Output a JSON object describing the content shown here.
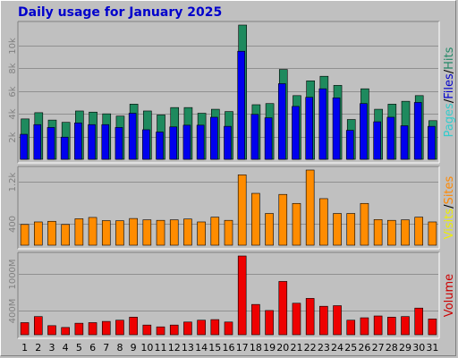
{
  "title": "Daily usage for January 2025",
  "legends": {
    "top": [
      {
        "text": "Pages",
        "color": "#33cccc"
      },
      {
        "text": "/",
        "color": "#000000"
      },
      {
        "text": "Files",
        "color": "#0000cc"
      },
      {
        "text": "/",
        "color": "#000000"
      },
      {
        "text": "Hits",
        "color": "#228866"
      }
    ],
    "middle": [
      {
        "text": "Visits",
        "color": "#eeee00"
      },
      {
        "text": "/",
        "color": "#000000"
      },
      {
        "text": "Sites",
        "color": "#ff8800"
      }
    ],
    "bottom": [
      {
        "text": "Volume",
        "color": "#cc0000"
      }
    ]
  },
  "colors": {
    "hits": "#1e8a5e",
    "files": "#0000ee",
    "sites": "#ff8c00",
    "volume": "#ee0000",
    "weekend_label": "#1a7a50"
  },
  "chart_data": [
    {
      "type": "bar",
      "title": "",
      "x": [
        "1",
        "2",
        "3",
        "4",
        "5",
        "6",
        "7",
        "8",
        "9",
        "10",
        "11",
        "12",
        "13",
        "14",
        "15",
        "16",
        "17",
        "18",
        "19",
        "20",
        "21",
        "22",
        "23",
        "24",
        "25",
        "26",
        "27",
        "28",
        "29",
        "30",
        "31"
      ],
      "weekend_days": [
        "4",
        "5",
        "11",
        "12",
        "18",
        "19",
        "25",
        "26"
      ],
      "series": [
        {
          "name": "Hits",
          "values": [
            3550,
            4100,
            3450,
            3250,
            4250,
            4150,
            4000,
            3800,
            4850,
            4250,
            3900,
            4550,
            4550,
            4050,
            4400,
            4200,
            11800,
            4800,
            4900,
            7900,
            5600,
            6900,
            7300,
            6500,
            3500,
            6200,
            4400,
            4850,
            5100,
            5600,
            3400
          ]
        },
        {
          "name": "Files",
          "values": [
            2200,
            3050,
            2800,
            1950,
            3200,
            3050,
            3050,
            2800,
            4050,
            2600,
            2400,
            2850,
            3000,
            3000,
            3700,
            2900,
            9500,
            3950,
            3650,
            6650,
            4650,
            5450,
            6200,
            5400,
            2550,
            4900,
            3300,
            3700,
            2950,
            5000,
            2900
          ]
        }
      ],
      "ytick_labels": [
        "2k",
        "4k",
        "6k",
        "8k",
        "10k"
      ],
      "ytick_values": [
        2000,
        4000,
        6000,
        8000,
        10000
      ],
      "ylim": [
        0,
        11800
      ]
    },
    {
      "type": "bar",
      "title": "",
      "x": [
        "1",
        "2",
        "3",
        "4",
        "5",
        "6",
        "7",
        "8",
        "9",
        "10",
        "11",
        "12",
        "13",
        "14",
        "15",
        "16",
        "17",
        "18",
        "19",
        "20",
        "21",
        "22",
        "23",
        "24",
        "25",
        "26",
        "27",
        "28",
        "29",
        "30",
        "31"
      ],
      "series": [
        {
          "name": "Sites",
          "values": [
            392,
            440,
            452,
            392,
            500,
            525,
            465,
            463,
            505,
            480,
            470,
            480,
            495,
            440,
            530,
            470,
            1330,
            980,
            600,
            960,
            790,
            1420,
            880,
            600,
            600,
            790,
            485,
            470,
            480,
            530,
            440
          ]
        }
      ],
      "ytick_labels": [
        "400",
        "1.2k"
      ],
      "ytick_values": [
        400,
        1200
      ],
      "ylim": [
        0,
        1420
      ]
    },
    {
      "type": "bar",
      "title": "",
      "x": [
        "1",
        "2",
        "3",
        "4",
        "5",
        "6",
        "7",
        "8",
        "9",
        "10",
        "11",
        "12",
        "13",
        "14",
        "15",
        "16",
        "17",
        "18",
        "19",
        "20",
        "21",
        "22",
        "23",
        "24",
        "25",
        "26",
        "27",
        "28",
        "29",
        "30",
        "31"
      ],
      "series": [
        {
          "name": "Volume",
          "values": [
            200,
            300,
            150,
            120,
            190,
            200,
            220,
            240,
            290,
            160,
            130,
            160,
            210,
            240,
            250,
            210,
            1300,
            500,
            400,
            880,
            520,
            600,
            470,
            480,
            240,
            280,
            310,
            290,
            300,
            440,
            260
          ]
        }
      ],
      "ytick_labels": [
        "400M",
        "1000M"
      ],
      "ytick_values": [
        400,
        1000
      ],
      "ytick_unit": "M",
      "ylim": [
        0,
        1300
      ]
    }
  ]
}
